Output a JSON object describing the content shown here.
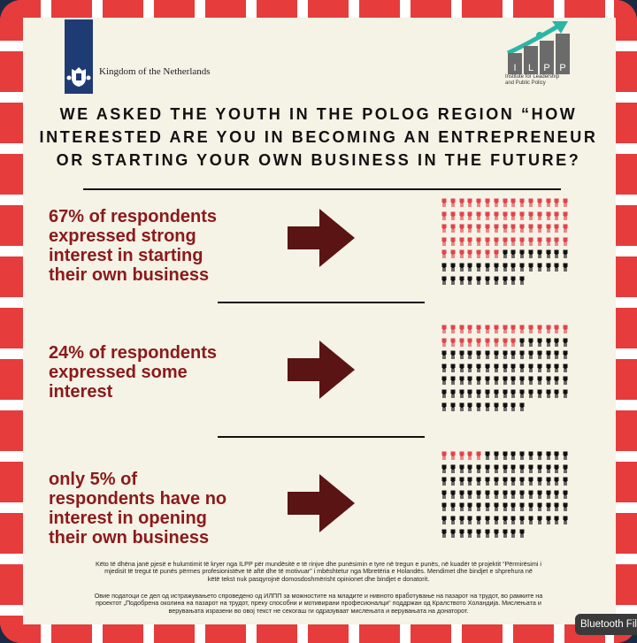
{
  "logos": {
    "netherlands_text": "Kingdom of the Netherlands",
    "ilpp_acronym": "ILPP",
    "ilpp_name_lines": [
      "Institute for Leadership",
      "and Public Policy"
    ]
  },
  "title_lines": [
    "WE ASKED THE YOUTH IN THE POLOG REGION “HOW",
    "INTERESTED ARE YOU IN BECOMING AN ENTREPRENEUR",
    "OR STARTING YOUR OWN BUSINESS IN THE FUTURE?"
  ],
  "stats": [
    {
      "lines": [
        "67% of respondents",
        "expressed strong",
        "interest in starting",
        "their own business"
      ],
      "percent": 67
    },
    {
      "lines": [
        "24% of respondents",
        "expressed some",
        "interest"
      ],
      "percent": 24
    },
    {
      "lines": [
        "only 5% of",
        "respondents have no",
        "interest in opening",
        "their own business"
      ],
      "percent": 5
    }
  ],
  "footer_albanian": [
    "Këto të dhëna janë pjesë e hulumtimit të kryer nga ILPP për mundësitë e të rinjve dhe punësimin e tyre në tregun e punës, në kuadër të projektit “Përmirësimi i",
    "mjedisit të tregut të punës përmes profesionistëve të aftë dhe të motivuar” i mbështetur nga Mbretëria e Holandës. Mendimet dhe bindjet e shprehura në",
    "këtë tekst nuk pasqyrojnë domosdoshmërisht opinionet dhe bindjet e donatorit."
  ],
  "footer_macedonian": [
    "Овие податоци се дел од истражувањето спроведено од ИЛПП за можностите на младите и нивното вработување на пазарот на трудот, во рамките на",
    "проектот „Подобрена околина на пазарот на трудот, преку способни и мотивирани професионалци“ поддржан од Кралството Холандија. Мислењата и",
    "верувањата изразени во овој текст не секогаш ги одразуваат мислењата и верувањата на донаторот."
  ],
  "overlay": {
    "bluetooth": "Bluetooth Fil"
  },
  "colors": {
    "accent": "#8b1a1a",
    "icon_red": "#e2434b",
    "icon_black": "#111111",
    "frame_red": "#e63c3c",
    "arrow": "#5a1414"
  }
}
